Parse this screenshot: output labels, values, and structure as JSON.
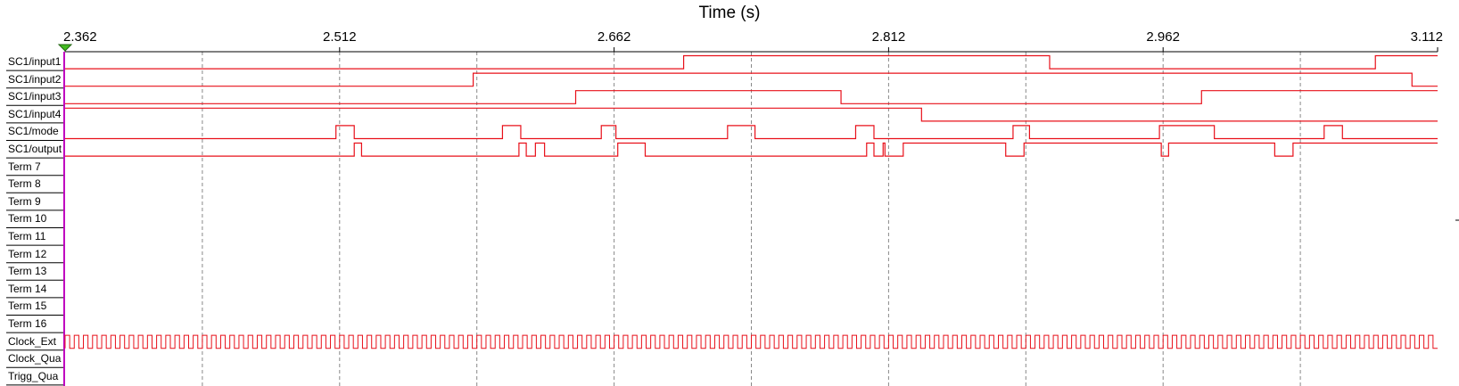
{
  "axis": {
    "title": "Time (s)",
    "ticks": [
      "2.362",
      "2.512",
      "2.662",
      "2.812",
      "2.962",
      "3.112"
    ],
    "start": 2.362,
    "end": 3.112
  },
  "colors": {
    "trace": "#e8101a",
    "label_divider": "#c000c0",
    "grid": "#888888",
    "cursor_marker": "#44bb22"
  },
  "signals": [
    {
      "name": "SC1/input1",
      "init": 0,
      "edges": [
        2.7,
        2.9,
        3.078
      ]
    },
    {
      "name": "SC1/input2",
      "init": 0,
      "edges": [
        2.585,
        3.098
      ]
    },
    {
      "name": "SC1/input3",
      "init": 0,
      "edges": [
        2.641,
        2.786,
        2.983
      ]
    },
    {
      "name": "SC1/input4",
      "init": 1,
      "edges": [
        2.83
      ]
    },
    {
      "name": "SC1/mode",
      "init": 0,
      "edges": [
        2.51,
        2.52,
        2.601,
        2.611,
        2.655,
        2.663,
        2.724,
        2.739,
        2.794,
        2.804,
        2.88,
        2.889,
        2.96,
        2.99,
        3.05,
        3.06
      ]
    },
    {
      "name": "SC1/output",
      "init": 0,
      "edges": [
        2.52,
        2.524,
        2.61,
        2.614,
        2.619,
        2.624,
        2.664,
        2.679,
        2.8,
        2.804,
        2.809,
        2.81,
        2.82,
        2.876,
        2.886,
        2.961,
        2.965,
        3.023,
        3.033
      ]
    },
    {
      "name": "Term 7"
    },
    {
      "name": "Term 8"
    },
    {
      "name": "Term 9"
    },
    {
      "name": "Term 10"
    },
    {
      "name": "Term 11"
    },
    {
      "name": "Term 12"
    },
    {
      "name": "Term 13"
    },
    {
      "name": "Term 14"
    },
    {
      "name": "Term 15"
    },
    {
      "name": "Term 16"
    },
    {
      "name": "Clock_Ext",
      "clock_cycles": 150
    },
    {
      "name": "Clock_Qua"
    },
    {
      "name": "Trigg_Qua"
    }
  ]
}
